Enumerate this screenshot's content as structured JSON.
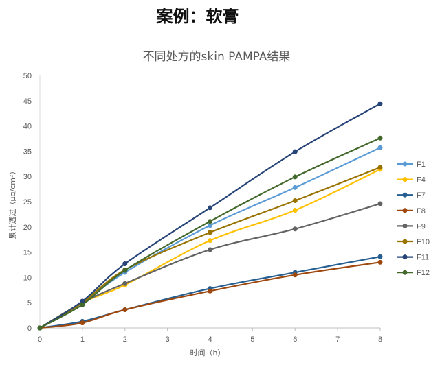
{
  "page_title": "案例：软膏",
  "chart_data": {
    "type": "line",
    "title": "不同处方的skin PAMPA结果",
    "xlabel": "时间（h）",
    "ylabel": "累计透过（μg/cm²）",
    "x": [
      0,
      1,
      2,
      4,
      6,
      8
    ],
    "xlim": [
      0,
      8
    ],
    "xticks": [
      0,
      1,
      2,
      3,
      4,
      5,
      6,
      7,
      8
    ],
    "ylim": [
      0,
      50
    ],
    "yticks": [
      0,
      5,
      10,
      15,
      20,
      25,
      30,
      35,
      40,
      45,
      50
    ],
    "grid": false,
    "legend_position": "right",
    "series": [
      {
        "name": "F1",
        "color": "#5b9bd5",
        "values": [
          0,
          5.0,
          11.0,
          20.3,
          27.8,
          35.7
        ]
      },
      {
        "name": "F4",
        "color": "#ffc000",
        "values": [
          0,
          5.0,
          8.5,
          17.3,
          23.3,
          31.4
        ]
      },
      {
        "name": "F7",
        "color": "#255e91",
        "values": [
          0,
          1.3,
          3.6,
          7.8,
          11.0,
          14.1
        ]
      },
      {
        "name": "F8",
        "color": "#9e480e",
        "values": [
          0,
          1.0,
          3.6,
          7.3,
          10.5,
          13.0
        ]
      },
      {
        "name": "F9",
        "color": "#636363",
        "values": [
          0,
          5.0,
          8.8,
          15.5,
          19.6,
          24.6
        ]
      },
      {
        "name": "F10",
        "color": "#997300",
        "values": [
          0,
          5.0,
          11.5,
          18.9,
          25.2,
          31.8
        ]
      },
      {
        "name": "F11",
        "color": "#264478",
        "values": [
          0,
          5.3,
          12.7,
          23.8,
          34.9,
          44.4
        ]
      },
      {
        "name": "F12",
        "color": "#43682b",
        "values": [
          0,
          4.6,
          11.4,
          21.1,
          29.9,
          37.6
        ]
      }
    ]
  }
}
